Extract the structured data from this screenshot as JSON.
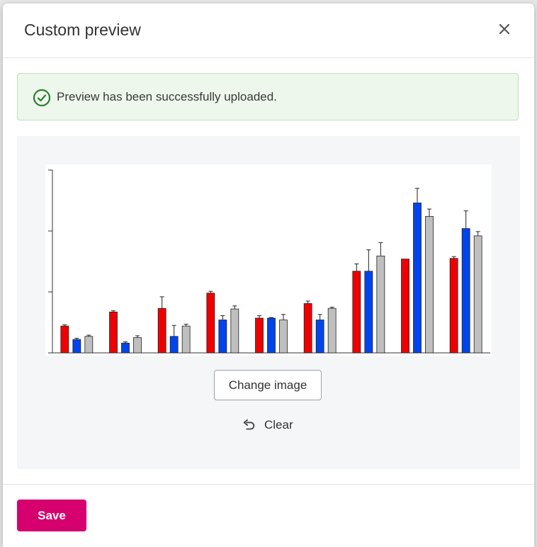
{
  "dialog": {
    "title": "Custom preview",
    "close_icon": "close-icon"
  },
  "alert": {
    "message": "Preview has been successfully uploaded.",
    "icon": "check-circle-icon",
    "color": "#2e7d32"
  },
  "preview": {
    "change_image_label": "Change image",
    "clear_label": "Clear",
    "clear_icon": "undo-icon"
  },
  "footer": {
    "save_label": "Save",
    "save_color": "#d6006f"
  },
  "chart_data": {
    "type": "bar",
    "categories": [
      "",
      "",
      "",
      "",
      "",
      "",
      "",
      "",
      ""
    ],
    "ylim": [
      0,
      3
    ],
    "grid": false,
    "colors": [
      "#ee0000",
      "#0044ee",
      "#bfbfbf"
    ],
    "series": [
      {
        "values": [
          0.44,
          0.67,
          0.73,
          0.98,
          0.57,
          0.81,
          1.34,
          1.54,
          1.55
        ],
        "errors": [
          0.02,
          0.02,
          0.19,
          0.03,
          0.04,
          0.04,
          0.12,
          0,
          0.03
        ]
      },
      {
        "values": [
          0.22,
          0.16,
          0.27,
          0.54,
          0.57,
          0.54,
          1.34,
          2.46,
          2.04
        ],
        "errors": [
          0.02,
          0.02,
          0.18,
          0.07,
          0.01,
          0.09,
          0.35,
          0.24,
          0.29
        ]
      },
      {
        "values": [
          0.27,
          0.25,
          0.44,
          0.72,
          0.54,
          0.73,
          1.59,
          2.24,
          1.92
        ],
        "errors": [
          0.02,
          0.03,
          0.03,
          0.05,
          0.09,
          0.02,
          0.22,
          0.12,
          0.07
        ]
      }
    ]
  }
}
